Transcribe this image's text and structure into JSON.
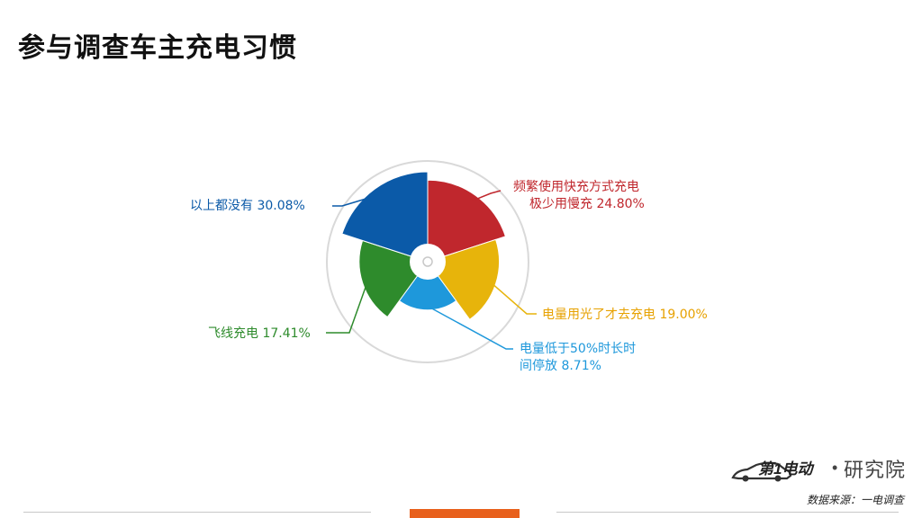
{
  "title": "参与调查车主充电习惯",
  "colors": {
    "accent": "#e8601c",
    "slice_1": "#c0272d",
    "slice_2": "#e7b40b",
    "slice_3": "#1e98db",
    "slice_4": "#2e8b2c",
    "slice_5": "#0b5aa8",
    "ring": "#d9d9d9"
  },
  "labels": {
    "slice_1_line1": "频繁使用快充方式充电",
    "slice_1_line2": "极少用慢充 24.80%",
    "slice_2": "电量用光了才去充电 19.00%",
    "slice_3_line1": "电量低于50%时长时",
    "slice_3_line2": "间停放 8.71%",
    "slice_4": "飞线充电 17.41%",
    "slice_5": "以上都没有 30.08%"
  },
  "chart_data": {
    "type": "pie",
    "title": "参与调查车主充电习惯",
    "slices": [
      {
        "label": "频繁使用快充方式充电极少用慢充",
        "value": 24.8
      },
      {
        "label": "电量用光了才去充电",
        "value": 19.0
      },
      {
        "label": "电量低于50%时长时间停放",
        "value": 8.71
      },
      {
        "label": "飞线充电",
        "value": 17.41
      },
      {
        "label": "以上都没有",
        "value": 30.08
      }
    ]
  },
  "logo": {
    "brand": "第1电动",
    "separator": "•",
    "suffix": "研究院"
  },
  "source": "数据来源：一电调查"
}
